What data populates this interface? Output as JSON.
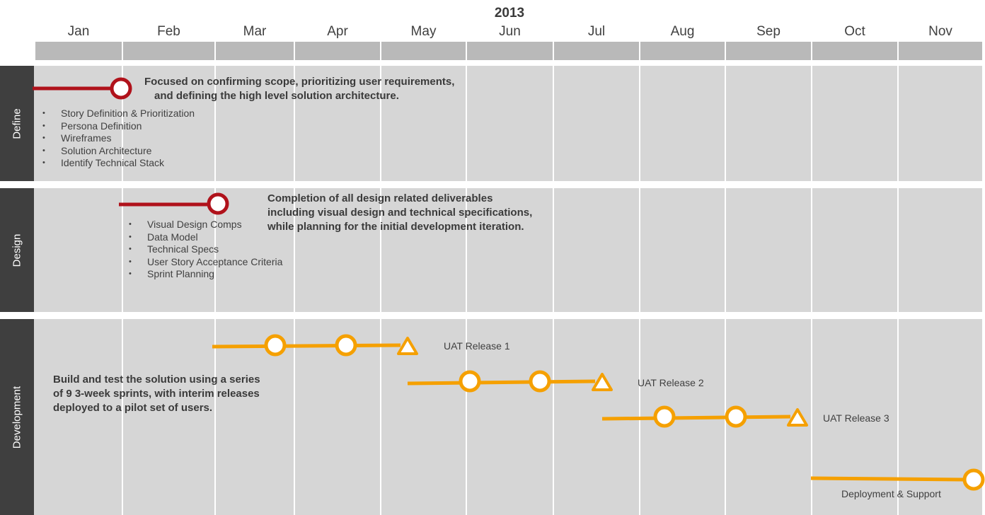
{
  "year": "2013",
  "months": [
    "Jan",
    "Feb",
    "Mar",
    "Apr",
    "May",
    "Jun",
    "Jul",
    "Aug",
    "Sep",
    "Oct",
    "Nov"
  ],
  "lanes": [
    {
      "name": "Define",
      "description": [
        "Focused on confirming scope, prioritizing user requirements,",
        "and defining the high level solution architecture."
      ],
      "items": [
        "Story Definition & Prioritization",
        "Persona Definition",
        "Wireframes",
        "Solution Architecture",
        "Identify Technical Stack"
      ]
    },
    {
      "name": "Design",
      "description": [
        "Completion of all design related deliverables",
        "including visual design and technical specifications,",
        "while planning for the initial development iteration."
      ],
      "items": [
        "Visual Design Comps",
        "Data Model",
        "Technical Specs",
        "User Story Acceptance Criteria",
        "Sprint Planning"
      ]
    },
    {
      "name": "Development",
      "description": [
        "Build and test the solution using a series",
        "of 9 3-week sprints, with interim releases",
        "deployed to a pilot set of users."
      ],
      "releases": [
        "UAT Release 1",
        "UAT Release 2",
        "UAT Release 3"
      ],
      "final": "Deployment & Support"
    }
  ],
  "colors": {
    "define_design": "#b0121b",
    "development": "#f5a000"
  }
}
